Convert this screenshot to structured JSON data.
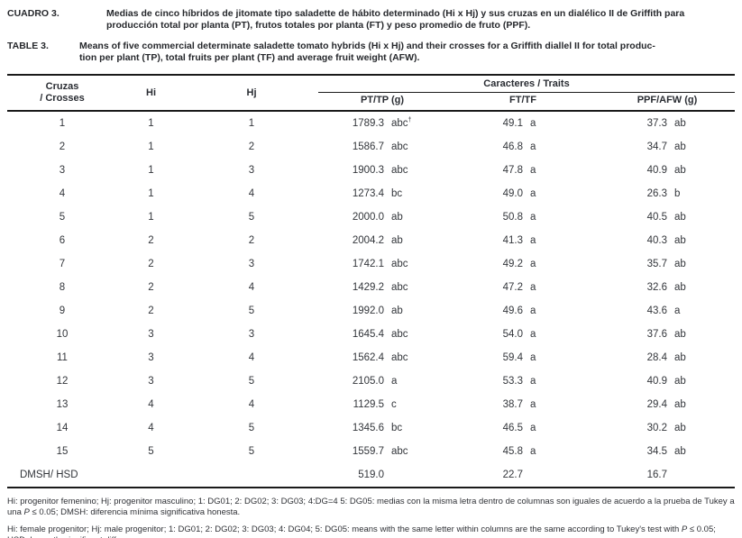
{
  "captions": {
    "es": {
      "label": "CUADRO 3.",
      "line1": "Medias de cinco híbridos de jitomate tipo saladette de hábito determinado (Hi x Hj) y sus cruzas en un dialélico II de Griffith para",
      "line2": "producción total por planta (PT), frutos totales por planta (FT) y peso promedio de fruto (PPF)."
    },
    "en": {
      "label": "TABLE 3.",
      "line1": "Means of five commercial determinate saladette tomato hybrids (Hi x Hj) and their crosses for a Griffith diallel II for total produc-",
      "line2": "tion per plant (TP), total fruits per plant (TF) and average fruit weight (AFW)."
    }
  },
  "table": {
    "header": {
      "crosses_line1": "Cruzas",
      "crosses_line2": "/ Crosses",
      "hi": "Hi",
      "hj": "Hj",
      "traits_group": "Caracteres / Traits",
      "pt": "PT/TP (g)",
      "ft": "FT/TF",
      "ppf": "PPF/AFW (g)"
    },
    "rows": [
      {
        "cross": "1",
        "hi": "1",
        "hj": "1",
        "pt": "1789.3",
        "pt_sig": "abc",
        "pt_sup": "†",
        "ft": "49.1",
        "ft_sig": "a",
        "ppf": "37.3",
        "ppf_sig": "ab"
      },
      {
        "cross": "2",
        "hi": "1",
        "hj": "2",
        "pt": "1586.7",
        "pt_sig": "abc",
        "pt_sup": "",
        "ft": "46.8",
        "ft_sig": "a",
        "ppf": "34.7",
        "ppf_sig": "ab"
      },
      {
        "cross": "3",
        "hi": "1",
        "hj": "3",
        "pt": "1900.3",
        "pt_sig": "abc",
        "pt_sup": "",
        "ft": "47.8",
        "ft_sig": "a",
        "ppf": "40.9",
        "ppf_sig": "ab"
      },
      {
        "cross": "4",
        "hi": "1",
        "hj": "4",
        "pt": "1273.4",
        "pt_sig": "bc",
        "pt_sup": "",
        "ft": "49.0",
        "ft_sig": "a",
        "ppf": "26.3",
        "ppf_sig": "b"
      },
      {
        "cross": "5",
        "hi": "1",
        "hj": "5",
        "pt": "2000.0",
        "pt_sig": "ab",
        "pt_sup": "",
        "ft": "50.8",
        "ft_sig": "a",
        "ppf": "40.5",
        "ppf_sig": "ab"
      },
      {
        "cross": "6",
        "hi": "2",
        "hj": "2",
        "pt": "2004.2",
        "pt_sig": "ab",
        "pt_sup": "",
        "ft": "41.3",
        "ft_sig": "a",
        "ppf": "40.3",
        "ppf_sig": "ab"
      },
      {
        "cross": "7",
        "hi": "2",
        "hj": "3",
        "pt": "1742.1",
        "pt_sig": "abc",
        "pt_sup": "",
        "ft": "49.2",
        "ft_sig": "a",
        "ppf": "35.7",
        "ppf_sig": "ab"
      },
      {
        "cross": "8",
        "hi": "2",
        "hj": "4",
        "pt": "1429.2",
        "pt_sig": "abc",
        "pt_sup": "",
        "ft": "47.2",
        "ft_sig": "a",
        "ppf": "32.6",
        "ppf_sig": "ab"
      },
      {
        "cross": "9",
        "hi": "2",
        "hj": "5",
        "pt": "1992.0",
        "pt_sig": "ab",
        "pt_sup": "",
        "ft": "49.6",
        "ft_sig": "a",
        "ppf": "43.6",
        "ppf_sig": "a"
      },
      {
        "cross": "10",
        "hi": "3",
        "hj": "3",
        "pt": "1645.4",
        "pt_sig": "abc",
        "pt_sup": "",
        "ft": "54.0",
        "ft_sig": "a",
        "ppf": "37.6",
        "ppf_sig": "ab"
      },
      {
        "cross": "11",
        "hi": "3",
        "hj": "4",
        "pt": "1562.4",
        "pt_sig": "abc",
        "pt_sup": "",
        "ft": "59.4",
        "ft_sig": "a",
        "ppf": "28.4",
        "ppf_sig": "ab"
      },
      {
        "cross": "12",
        "hi": "3",
        "hj": "5",
        "pt": "2105.0",
        "pt_sig": "a",
        "pt_sup": "",
        "ft": "53.3",
        "ft_sig": "a",
        "ppf": "40.9",
        "ppf_sig": "ab"
      },
      {
        "cross": "13",
        "hi": "4",
        "hj": "4",
        "pt": "1129.5",
        "pt_sig": "c",
        "pt_sup": "",
        "ft": "38.7",
        "ft_sig": "a",
        "ppf": "29.4",
        "ppf_sig": "ab"
      },
      {
        "cross": "14",
        "hi": "4",
        "hj": "5",
        "pt": "1345.6",
        "pt_sig": "bc",
        "pt_sup": "",
        "ft": "46.5",
        "ft_sig": "a",
        "ppf": "30.2",
        "ppf_sig": "ab"
      },
      {
        "cross": "15",
        "hi": "5",
        "hj": "5",
        "pt": "1559.7",
        "pt_sig": "abc",
        "pt_sup": "",
        "ft": "45.8",
        "ft_sig": "a",
        "ppf": "34.5",
        "ppf_sig": "ab"
      }
    ],
    "hsd_row": {
      "label": "DMSH/ HSD",
      "pt": "519.0",
      "ft": "22.7",
      "ppf": "16.7"
    }
  },
  "footnotes": {
    "p_italic": "P",
    "es_part1": "Hi: progenitor femenino; Hj: progenitor masculino; 1: DG01; 2: DG02; 3: DG03; 4:DG=4 5: DG05: medias con la misma letra dentro de columnas son iguales de acuerdo a la prueba de Tukey a una ",
    "es_part2": " ≤ 0.05; DMSH: diferencia mínima significativa honesta.",
    "en_part1": "Hi: female progenitor; Hj: male progenitor; 1: DG01; 2: DG02; 3: DG03; 4: DG04; 5: DG05: means with the same letter within columns are the same according to Tukey's test with ",
    "en_part2": " ≤ 0.05; HSD: honestly significant difference."
  },
  "colors": {
    "text": "#33363b",
    "border": "#1a1a1a",
    "background": "#ffffff"
  }
}
